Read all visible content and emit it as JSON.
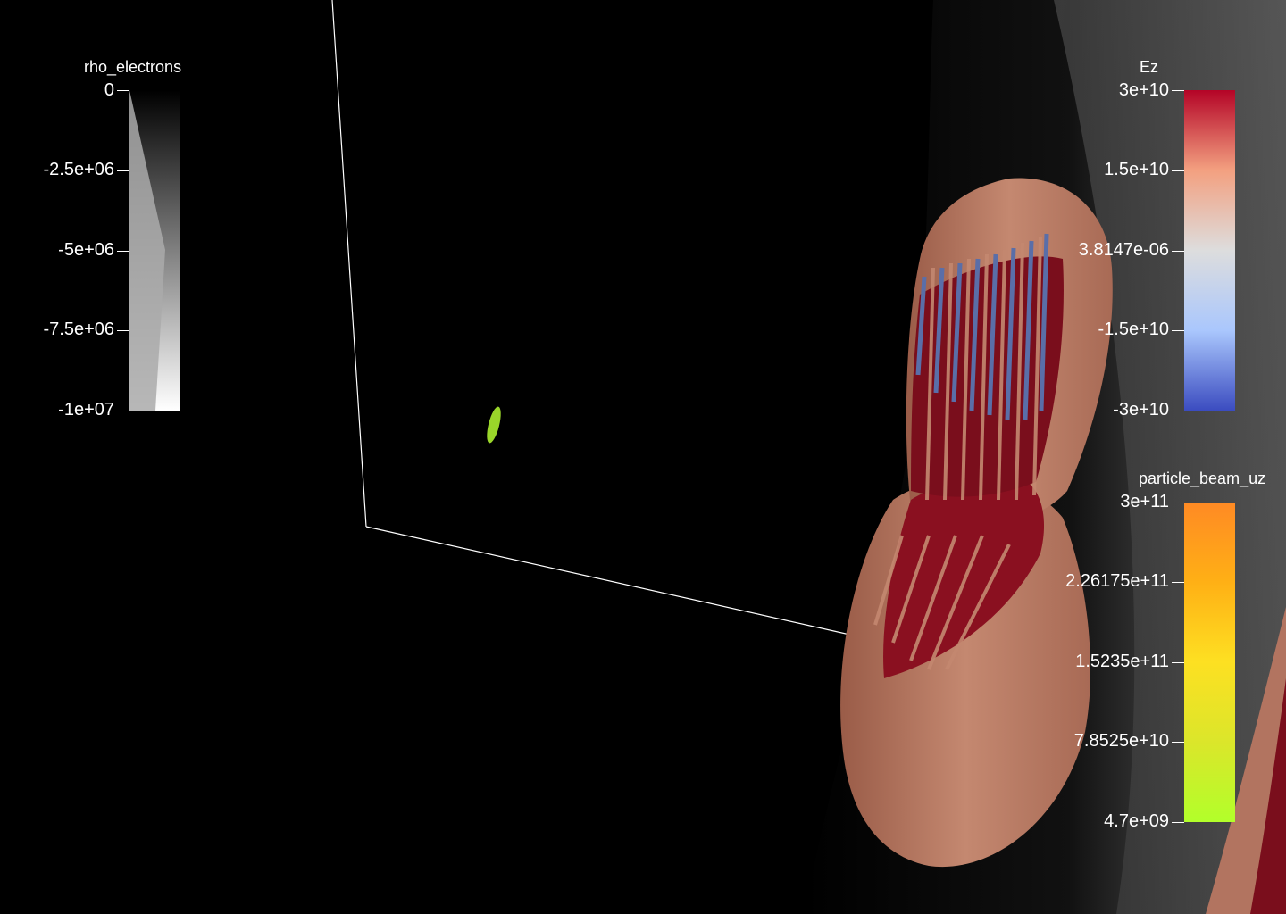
{
  "scene": {
    "top_label": "",
    "colors": {
      "background": "#000000",
      "beam": "#9ad62a",
      "shell": "#b27460",
      "inner": "#8a1020",
      "blue": "#5a6ea8"
    }
  },
  "legends": [
    {
      "id": "rho_electrons",
      "title": "rho_electrons",
      "ticks": [
        "0",
        "-2.5e+06",
        "-5e+06",
        "-7.5e+06",
        "-1e+07"
      ],
      "colors": [
        "#000000",
        "#ffffff"
      ]
    },
    {
      "id": "Ez",
      "title": "Ez",
      "ticks": [
        "3e+10",
        "1.5e+10",
        "3.8147e-06",
        "-1.5e+10",
        "-3e+10"
      ],
      "colors": [
        "#b40426",
        "#f3a080",
        "#dddddd",
        "#aac7fd",
        "#3b4cc0"
      ]
    },
    {
      "id": "particle_beam_uz",
      "title": "particle_beam_uz",
      "ticks": [
        "3e+11",
        "2.26175e+11",
        "1.5235e+11",
        "7.8525e+10",
        "4.7e+09"
      ],
      "colors": [
        "#ff8a24",
        "#ffb015",
        "#fde022",
        "#dbe62a",
        "#b2ff2a"
      ]
    }
  ]
}
